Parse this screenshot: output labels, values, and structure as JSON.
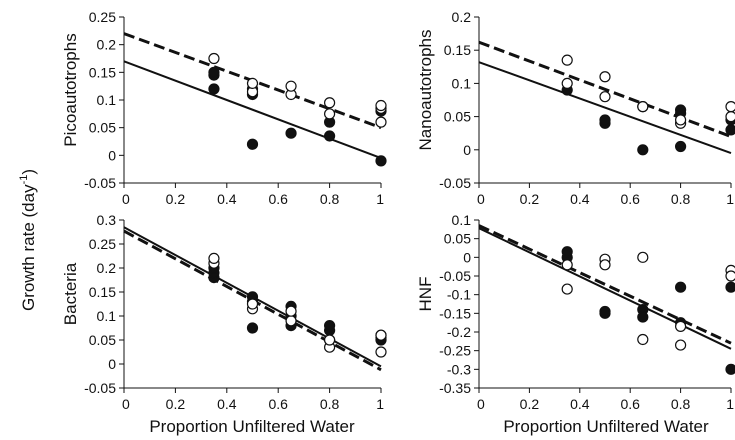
{
  "y_axis_title": "Growth rate (day",
  "y_axis_title_sup": "-1",
  "y_axis_title_close": ")",
  "x_axis_title": "Proportion Unfiltered Water",
  "chart_data": [
    {
      "type": "scatter",
      "ylabel": "Picoautotrophs",
      "xlabel": "",
      "xlim": [
        0,
        1
      ],
      "ylim": [
        -0.05,
        0.25
      ],
      "x_ticks": [
        "0",
        "0.2",
        "0.4",
        "0.6",
        "0.8",
        "1"
      ],
      "y_ticks": [
        "-0.05",
        "0",
        "0.05",
        "0.1",
        "0.15",
        "0.2",
        "0.25"
      ],
      "series": [
        {
          "marker": "filled",
          "points": [
            [
              0.35,
              0.12
            ],
            [
              0.35,
              0.145
            ],
            [
              0.35,
              0.15
            ],
            [
              0.5,
              0.02
            ],
            [
              0.5,
              0.11
            ],
            [
              0.5,
              0.12
            ],
            [
              0.65,
              0.04
            ],
            [
              0.8,
              0.035
            ],
            [
              0.8,
              0.06
            ],
            [
              1,
              -0.01
            ],
            [
              1,
              0.08
            ]
          ]
        },
        {
          "marker": "open",
          "points": [
            [
              0.35,
              0.175
            ],
            [
              0.5,
              0.115
            ],
            [
              0.5,
              0.13
            ],
            [
              0.65,
              0.11
            ],
            [
              0.65,
              0.125
            ],
            [
              0.8,
              0.075
            ],
            [
              0.8,
              0.095
            ],
            [
              1,
              0.06
            ],
            [
              1,
              0.085
            ],
            [
              1,
              0.09
            ]
          ]
        }
      ],
      "lines": [
        {
          "style": "solid",
          "from": [
            0,
            0.17
          ],
          "to": [
            1,
            -0.005
          ]
        },
        {
          "style": "dashed",
          "from": [
            0,
            0.22
          ],
          "to": [
            1,
            0.05
          ]
        }
      ]
    },
    {
      "type": "scatter",
      "ylabel": "Nanoautotrophs",
      "xlabel": "",
      "xlim": [
        0,
        1
      ],
      "ylim": [
        -0.05,
        0.2
      ],
      "x_ticks": [
        "0",
        "0.2",
        "0.4",
        "0.6",
        "0.8",
        "1"
      ],
      "y_ticks": [
        "-0.05",
        "0",
        "0.05",
        "0.1",
        "0.15",
        "0.2"
      ],
      "series": [
        {
          "marker": "filled",
          "points": [
            [
              0.35,
              0.09
            ],
            [
              0.5,
              0.04
            ],
            [
              0.5,
              0.045
            ],
            [
              0.65,
              0.0
            ],
            [
              0.65,
              0.065
            ],
            [
              0.8,
              0.005
            ],
            [
              0.8,
              0.055
            ],
            [
              0.8,
              0.06
            ],
            [
              1,
              0.03
            ],
            [
              1,
              0.045
            ]
          ]
        },
        {
          "marker": "open",
          "points": [
            [
              0.35,
              0.1
            ],
            [
              0.35,
              0.135
            ],
            [
              0.5,
              0.08
            ],
            [
              0.5,
              0.11
            ],
            [
              0.65,
              0.065
            ],
            [
              0.8,
              0.04
            ],
            [
              0.8,
              0.045
            ],
            [
              1,
              0.05
            ],
            [
              1,
              0.065
            ]
          ]
        }
      ],
      "lines": [
        {
          "style": "solid",
          "from": [
            0,
            0.132
          ],
          "to": [
            1,
            -0.005
          ]
        },
        {
          "style": "dashed",
          "from": [
            0,
            0.162
          ],
          "to": [
            1,
            0.02
          ]
        }
      ]
    },
    {
      "type": "scatter",
      "ylabel": "Bacteria",
      "xlabel": "Proportion Unfiltered Water",
      "xlim": [
        0,
        1
      ],
      "ylim": [
        -0.05,
        0.3
      ],
      "x_ticks": [
        "0",
        "0.2",
        "0.4",
        "0.6",
        "0.8",
        "1"
      ],
      "y_ticks": [
        "-0.05",
        "0",
        "0.05",
        "0.1",
        "0.15",
        "0.2",
        "0.25",
        "0.3"
      ],
      "series": [
        {
          "marker": "filled",
          "points": [
            [
              0.35,
              0.18
            ],
            [
              0.35,
              0.19
            ],
            [
              0.35,
              0.2
            ],
            [
              0.5,
              0.075
            ],
            [
              0.5,
              0.13
            ],
            [
              0.5,
              0.14
            ],
            [
              0.65,
              0.08
            ],
            [
              0.65,
              0.1
            ],
            [
              0.65,
              0.12
            ],
            [
              0.8,
              0.05
            ],
            [
              0.8,
              0.07
            ],
            [
              0.8,
              0.08
            ],
            [
              1,
              0.05
            ],
            [
              1,
              0.055
            ],
            [
              1,
              0.06
            ]
          ]
        },
        {
          "marker": "open",
          "points": [
            [
              0.35,
              0.21
            ],
            [
              0.35,
              0.22
            ],
            [
              0.5,
              0.115
            ],
            [
              0.5,
              0.125
            ],
            [
              0.65,
              0.09
            ],
            [
              0.65,
              0.11
            ],
            [
              0.8,
              0.035
            ],
            [
              0.8,
              0.05
            ],
            [
              1,
              0.025
            ],
            [
              1,
              0.06
            ]
          ]
        }
      ],
      "lines": [
        {
          "style": "solid",
          "from": [
            0,
            0.285
          ],
          "to": [
            1,
            -0.005
          ]
        },
        {
          "style": "dashed",
          "from": [
            0,
            0.277
          ],
          "to": [
            1,
            -0.012
          ]
        }
      ]
    },
    {
      "type": "scatter",
      "ylabel": "HNF",
      "xlabel": "Proportion Unfiltered Water",
      "xlim": [
        0,
        1
      ],
      "ylim": [
        -0.35,
        0.1
      ],
      "x_ticks": [
        "0",
        "0.2",
        "0.4",
        "0.6",
        "0.8",
        "1"
      ],
      "y_ticks": [
        "-0.35",
        "-0.3",
        "-0.25",
        "-0.2",
        "-0.15",
        "-0.1",
        "-0.05",
        "0",
        "0.05",
        "0.1"
      ],
      "series": [
        {
          "marker": "filled",
          "points": [
            [
              0.35,
              0.0
            ],
            [
              0.35,
              0.015
            ],
            [
              0.5,
              -0.145
            ],
            [
              0.5,
              -0.15
            ],
            [
              0.65,
              -0.14
            ],
            [
              0.65,
              -0.16
            ],
            [
              0.8,
              -0.08
            ],
            [
              0.8,
              -0.175
            ],
            [
              1,
              -0.08
            ],
            [
              1,
              -0.3
            ]
          ]
        },
        {
          "marker": "open",
          "points": [
            [
              0.35,
              -0.02
            ],
            [
              0.35,
              -0.085
            ],
            [
              0.5,
              -0.005
            ],
            [
              0.5,
              -0.02
            ],
            [
              0.65,
              0.0
            ],
            [
              0.65,
              -0.22
            ],
            [
              0.8,
              -0.185
            ],
            [
              0.8,
              -0.235
            ],
            [
              1,
              -0.035
            ],
            [
              1,
              -0.05
            ]
          ]
        }
      ],
      "lines": [
        {
          "style": "solid",
          "from": [
            0,
            0.078
          ],
          "to": [
            1,
            -0.245
          ]
        },
        {
          "style": "dashed",
          "from": [
            0,
            0.085
          ],
          "to": [
            1,
            -0.23
          ]
        }
      ]
    }
  ]
}
